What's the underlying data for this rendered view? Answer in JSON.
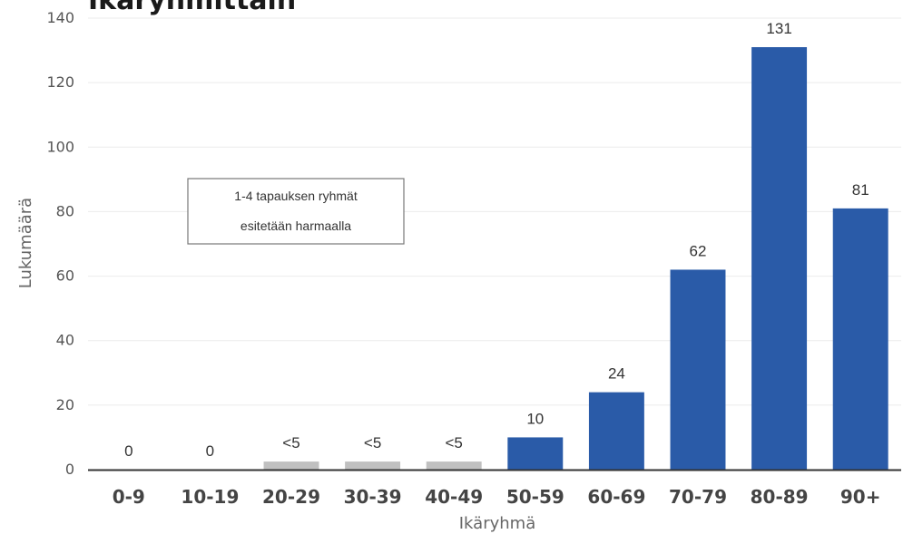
{
  "chart_data": {
    "type": "bar",
    "title": "Ikäryhmittäin",
    "xlabel": "Ikäryhmä",
    "ylabel": "Lukumäärä",
    "categories": [
      "0-9",
      "10-19",
      "20-29",
      "30-39",
      "40-49",
      "50-59",
      "60-69",
      "70-79",
      "80-89",
      "90+"
    ],
    "values": [
      0,
      0,
      2.5,
      2.5,
      2.5,
      10,
      24,
      62,
      131,
      81
    ],
    "data_labels": [
      "0",
      "0",
      "<5",
      "<5",
      "<5",
      "10",
      "24",
      "62",
      "131",
      "81"
    ],
    "suppressed": [
      false,
      false,
      true,
      true,
      true,
      false,
      false,
      false,
      false,
      false
    ],
    "ylim": [
      0,
      140
    ],
    "yticks": [
      "0",
      "20",
      "40",
      "60",
      "80",
      "100",
      "120",
      "140"
    ],
    "grid": true,
    "annotation": [
      "1-4 tapauksen ryhmät",
      "esitetään harmaalla"
    ],
    "colors": {
      "bar": "#2a5ba8",
      "suppressed_bar": "#c0c0c0",
      "grid": "#ebebeb",
      "axis": "#333333"
    }
  }
}
